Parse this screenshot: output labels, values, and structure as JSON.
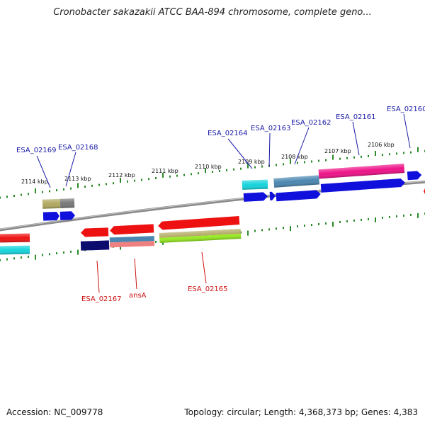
{
  "title": "Cronobacter sakazakii ATCC BAA-894 chromosome, complete geno...",
  "footer": {
    "accession": "Accession: NC_009778",
    "topology": "Topology: circular; Length: 4,368,373 bp; Genes: 4,383"
  },
  "ticks": [
    "2114 kbp",
    "2113 kbp",
    "2112 kbp",
    "2111 kbp",
    "2110 kbp",
    "2109 kbp",
    "2108 kbp",
    "2107 kbp",
    "2106 kbp"
  ],
  "genes_top": [
    "ESA_02169",
    "ESA_02168",
    "ESA_02164",
    "ESA_02163",
    "ESA_02162",
    "ESA_02161",
    "ESA_02160"
  ],
  "genes_bottom": [
    "ESA_02167",
    "ansA",
    "ESA_02165"
  ],
  "colors": {
    "top_label": "#1a1aa6",
    "bottom_label": "#cc1111",
    "red": "#ee1111",
    "blue": "#1010dd",
    "navy": "#0c0c6e",
    "cyan": "#16d4dc",
    "steel": "#4a86b0",
    "magenta": "#ee1188",
    "olive": "#b0a860",
    "lime": "#99ee22",
    "gray": "#777777",
    "salmon": "#ee8080",
    "tick": "#2a8a2a"
  }
}
